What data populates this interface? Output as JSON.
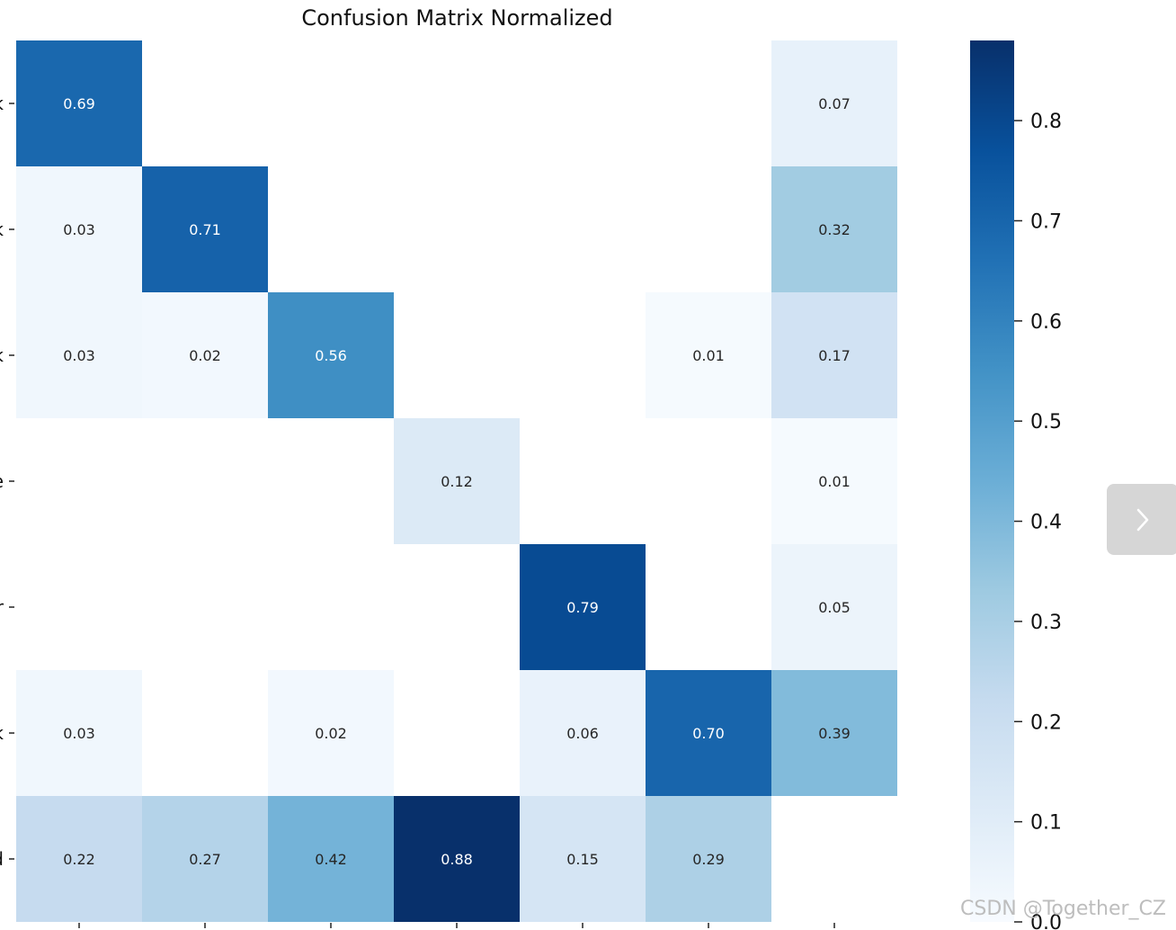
{
  "chart_data": {
    "type": "heatmap",
    "title": "Confusion Matrix Normalized",
    "rows": 7,
    "cols": 7,
    "row_labels_visible": [
      "k",
      "k",
      "k",
      "e",
      "r",
      "k",
      "d"
    ],
    "cells": [
      {
        "row": 0,
        "col": 0,
        "value": 0.69,
        "label": "0.69"
      },
      {
        "row": 0,
        "col": 6,
        "value": 0.07,
        "label": "0.07"
      },
      {
        "row": 1,
        "col": 0,
        "value": 0.03,
        "label": "0.03"
      },
      {
        "row": 1,
        "col": 1,
        "value": 0.71,
        "label": "0.71"
      },
      {
        "row": 1,
        "col": 6,
        "value": 0.32,
        "label": "0.32"
      },
      {
        "row": 2,
        "col": 0,
        "value": 0.03,
        "label": "0.03"
      },
      {
        "row": 2,
        "col": 1,
        "value": 0.02,
        "label": "0.02"
      },
      {
        "row": 2,
        "col": 2,
        "value": 0.56,
        "label": "0.56"
      },
      {
        "row": 2,
        "col": 5,
        "value": 0.01,
        "label": "0.01"
      },
      {
        "row": 2,
        "col": 6,
        "value": 0.17,
        "label": "0.17"
      },
      {
        "row": 3,
        "col": 3,
        "value": 0.12,
        "label": "0.12"
      },
      {
        "row": 3,
        "col": 6,
        "value": 0.01,
        "label": "0.01"
      },
      {
        "row": 4,
        "col": 4,
        "value": 0.79,
        "label": "0.79"
      },
      {
        "row": 4,
        "col": 6,
        "value": 0.05,
        "label": "0.05"
      },
      {
        "row": 5,
        "col": 0,
        "value": 0.03,
        "label": "0.03"
      },
      {
        "row": 5,
        "col": 2,
        "value": 0.02,
        "label": "0.02"
      },
      {
        "row": 5,
        "col": 4,
        "value": 0.06,
        "label": "0.06"
      },
      {
        "row": 5,
        "col": 5,
        "value": 0.7,
        "label": "0.70"
      },
      {
        "row": 5,
        "col": 6,
        "value": 0.39,
        "label": "0.39"
      },
      {
        "row": 6,
        "col": 0,
        "value": 0.22,
        "label": "0.22"
      },
      {
        "row": 6,
        "col": 1,
        "value": 0.27,
        "label": "0.27"
      },
      {
        "row": 6,
        "col": 2,
        "value": 0.42,
        "label": "0.42"
      },
      {
        "row": 6,
        "col": 3,
        "value": 0.88,
        "label": "0.88"
      },
      {
        "row": 6,
        "col": 4,
        "value": 0.15,
        "label": "0.15"
      },
      {
        "row": 6,
        "col": 5,
        "value": 0.29,
        "label": "0.29"
      }
    ],
    "colorbar": {
      "range": [
        0.0,
        0.88
      ],
      "ticks": [
        0.0,
        0.1,
        0.2,
        0.3,
        0.4,
        0.5,
        0.6,
        0.7,
        0.8
      ],
      "tick_labels": [
        "0.0",
        "0.1",
        "0.2",
        "0.3",
        "0.4",
        "0.5",
        "0.6",
        "0.7",
        "0.8"
      ]
    },
    "colormap": [
      "#f7fbff",
      "#deebf7",
      "#c6dbef",
      "#9ecae1",
      "#6baed6",
      "#4292c6",
      "#2171b5",
      "#08519c",
      "#08306b"
    ]
  },
  "watermark": "CSDN @Together_CZ",
  "nav": {
    "next_icon": "chevron-right-icon"
  }
}
